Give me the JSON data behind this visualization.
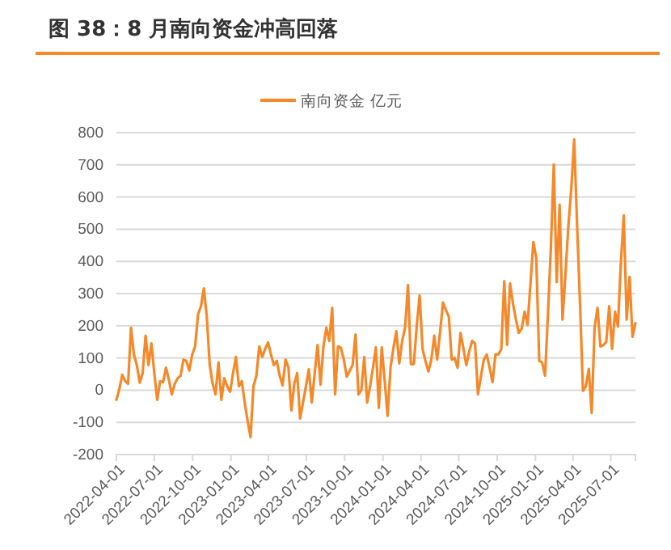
{
  "chart_data": {
    "type": "line",
    "title": "图 38：8 月南向资金冲高回落",
    "x": [
      "2022-04-01",
      "2022-04-08",
      "2022-04-15",
      "2022-04-22",
      "2022-04-29",
      "2022-05-06",
      "2022-05-13",
      "2022-05-20",
      "2022-05-27",
      "2022-06-03",
      "2022-06-10",
      "2022-06-17",
      "2022-06-24",
      "2022-07-01",
      "2022-07-08",
      "2022-07-15",
      "2022-07-22",
      "2022-07-29",
      "2022-08-05",
      "2022-08-12",
      "2022-08-19",
      "2022-08-26",
      "2022-09-02",
      "2022-09-09",
      "2022-09-16",
      "2022-09-23",
      "2022-09-30",
      "2022-10-07",
      "2022-10-14",
      "2022-10-21",
      "2022-10-28",
      "2022-11-04",
      "2022-11-11",
      "2022-11-18",
      "2022-11-25",
      "2022-12-02",
      "2022-12-09",
      "2022-12-16",
      "2022-12-23",
      "2022-12-30",
      "2023-01-06",
      "2023-01-13",
      "2023-01-20",
      "2023-01-27",
      "2023-02-03",
      "2023-02-10",
      "2023-02-17",
      "2023-02-24",
      "2023-03-03",
      "2023-03-10",
      "2023-03-17",
      "2023-03-24",
      "2023-03-31",
      "2023-04-07",
      "2023-04-14",
      "2023-04-21",
      "2023-04-28",
      "2023-05-05",
      "2023-05-12",
      "2023-05-19",
      "2023-05-26",
      "2023-06-02",
      "2023-06-09",
      "2023-06-16",
      "2023-06-23",
      "2023-06-30",
      "2023-07-07",
      "2023-07-14",
      "2023-07-21",
      "2023-07-28",
      "2023-08-04",
      "2023-08-11",
      "2023-08-18",
      "2023-08-25",
      "2023-09-01",
      "2023-09-08",
      "2023-09-15",
      "2023-09-22",
      "2023-09-29",
      "2023-10-06",
      "2023-10-13",
      "2023-10-20",
      "2023-10-27",
      "2023-11-03",
      "2023-11-10",
      "2023-11-17",
      "2023-11-24",
      "2023-12-01",
      "2023-12-08",
      "2023-12-15",
      "2023-12-22",
      "2023-12-29",
      "2024-01-05",
      "2024-01-12",
      "2024-01-19",
      "2024-01-26",
      "2024-02-02",
      "2024-02-09",
      "2024-02-16",
      "2024-02-23",
      "2024-03-01",
      "2024-03-08",
      "2024-03-15",
      "2024-03-22",
      "2024-03-29",
      "2024-04-05",
      "2024-04-12",
      "2024-04-19",
      "2024-04-26",
      "2024-05-03",
      "2024-05-10",
      "2024-05-17",
      "2024-05-24",
      "2024-05-31",
      "2024-06-07",
      "2024-06-14",
      "2024-06-21",
      "2024-06-28",
      "2024-07-05",
      "2024-07-12",
      "2024-07-19",
      "2024-07-26",
      "2024-08-02",
      "2024-08-09",
      "2024-08-16",
      "2024-08-23",
      "2024-08-30",
      "2024-09-06",
      "2024-09-13",
      "2024-09-20",
      "2024-09-27",
      "2024-10-04",
      "2024-10-11",
      "2024-10-18",
      "2024-10-25",
      "2024-11-01",
      "2024-11-08",
      "2024-11-15",
      "2024-11-22",
      "2024-11-29",
      "2024-12-06",
      "2024-12-13",
      "2024-12-20",
      "2024-12-27",
      "2025-01-03",
      "2025-01-10",
      "2025-01-17",
      "2025-01-24",
      "2025-01-31",
      "2025-02-07",
      "2025-02-14",
      "2025-02-21",
      "2025-02-28",
      "2025-03-07",
      "2025-03-14",
      "2025-03-21",
      "2025-03-28",
      "2025-04-04",
      "2025-04-11",
      "2025-04-18",
      "2025-04-25",
      "2025-05-02",
      "2025-05-09",
      "2025-05-16",
      "2025-05-23",
      "2025-05-30",
      "2025-06-06",
      "2025-06-13",
      "2025-06-20",
      "2025-06-27",
      "2025-07-04",
      "2025-07-11",
      "2025-07-18",
      "2025-07-25",
      "2025-08-01",
      "2025-08-08",
      "2025-08-15",
      "2025-08-22",
      "2025-08-29"
    ],
    "series": [
      {
        "name": "南向资金 亿元",
        "color": "#f5892a",
        "values": [
          -30,
          3,
          48,
          28,
          20,
          194,
          111,
          78,
          23,
          53,
          169,
          78,
          145,
          53,
          -30,
          28,
          25,
          70,
          32,
          -13,
          20,
          37,
          45,
          95,
          91,
          61,
          111,
          136,
          236,
          261,
          316,
          228,
          78,
          20,
          -13,
          86,
          -30,
          37,
          12,
          -5,
          53,
          103,
          12,
          28,
          -38,
          -96,
          -146,
          12,
          45,
          136,
          103,
          128,
          148,
          111,
          78,
          91,
          45,
          15,
          95,
          70,
          -63,
          20,
          53,
          -88,
          -38,
          12,
          65,
          -38,
          53,
          140,
          17,
          136,
          194,
          153,
          256,
          -13,
          136,
          131,
          95,
          42,
          60,
          78,
          173,
          -13,
          0,
          103,
          -38,
          12,
          70,
          133,
          -55,
          133,
          30,
          -80,
          70,
          130,
          183,
          83,
          153,
          194,
          327,
          81,
          81,
          200,
          294,
          128,
          90,
          58,
          95,
          169,
          95,
          180,
          272,
          249,
          228,
          95,
          100,
          70,
          178,
          130,
          78,
          120,
          153,
          145,
          -13,
          42,
          95,
          111,
          70,
          25,
          111,
          111,
          128,
          339,
          141,
          332,
          269,
          220,
          178,
          191,
          244,
          203,
          330,
          460,
          410,
          91,
          86,
          45,
          236,
          443,
          701,
          336,
          576,
          219,
          360,
          510,
          626,
          779,
          510,
          269,
          -2,
          12,
          66,
          -71,
          194,
          256,
          136,
          140,
          150,
          261,
          128,
          244,
          198,
          394,
          543,
          219,
          352,
          166,
          208
        ]
      }
    ],
    "xlim": [
      "2022-04-01",
      "2025-08-29"
    ],
    "xticks": [
      "2022-04-01",
      "2022-07-01",
      "2022-10-01",
      "2023-01-01",
      "2023-04-01",
      "2023-07-01",
      "2023-10-01",
      "2024-01-01",
      "2024-04-01",
      "2024-07-01",
      "2024-10-01",
      "2025-01-01",
      "2025-04-01",
      "2025-07-01"
    ],
    "ylim": [
      -200,
      800
    ],
    "yticks": [
      -200,
      -100,
      0,
      100,
      200,
      300,
      400,
      500,
      600,
      700,
      800
    ],
    "grid": "y",
    "legend": "top",
    "marker": "none",
    "line_style": "solid"
  }
}
